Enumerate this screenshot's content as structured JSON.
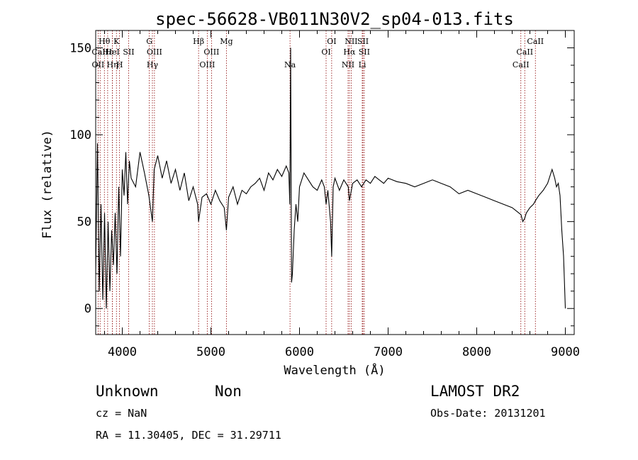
{
  "chart_data": {
    "type": "line",
    "title": "spec-56628-VB011N30V2_sp04-013.fits",
    "xlabel": "Wavelength (Å)",
    "ylabel": "Flux (relative)",
    "xlim": [
      3700,
      9100
    ],
    "ylim": [
      -15,
      160
    ],
    "x_ticks": [
      4000,
      5000,
      6000,
      7000,
      8000,
      9000
    ],
    "y_ticks": [
      0,
      50,
      100,
      150
    ],
    "grid": false,
    "series": [
      {
        "x": [
          3700,
          3720,
          3740,
          3760,
          3780,
          3800,
          3820,
          3840,
          3860,
          3880,
          3900,
          3920,
          3940,
          3960,
          3980,
          4000,
          4020,
          4040,
          4060,
          4080,
          4100,
          4150,
          4200,
          4250,
          4300,
          4340,
          4360,
          4400,
          4450,
          4500,
          4550,
          4600,
          4650,
          4700,
          4750,
          4800,
          4850,
          4861,
          4900,
          4950,
          5000,
          5050,
          5100,
          5150,
          5175,
          5200,
          5250,
          5300,
          5350,
          5400,
          5450,
          5500,
          5550,
          5600,
          5650,
          5700,
          5750,
          5800,
          5850,
          5880,
          5890,
          5895,
          5900,
          5910,
          5920,
          5940,
          5960,
          5980,
          6000,
          6050,
          6100,
          6150,
          6200,
          6250,
          6280,
          6300,
          6320,
          6350,
          6363,
          6380,
          6400,
          6450,
          6500,
          6550,
          6563,
          6600,
          6650,
          6700,
          6750,
          6800,
          6850,
          6900,
          6950,
          7000,
          7100,
          7200,
          7300,
          7400,
          7500,
          7600,
          7700,
          7800,
          7900,
          8000,
          8100,
          8200,
          8300,
          8400,
          8450,
          8500,
          8520,
          8542,
          8560,
          8600,
          8640,
          8662,
          8700,
          8750,
          8800,
          8850,
          8880,
          8900,
          8920,
          8940,
          8960,
          8980,
          9000
        ],
        "values": [
          20,
          95,
          10,
          60,
          5,
          55,
          0,
          50,
          10,
          45,
          25,
          55,
          20,
          70,
          30,
          80,
          65,
          90,
          60,
          85,
          75,
          70,
          90,
          78,
          65,
          50,
          80,
          88,
          75,
          85,
          72,
          80,
          68,
          78,
          62,
          70,
          60,
          50,
          64,
          66,
          60,
          68,
          62,
          58,
          45,
          64,
          70,
          60,
          68,
          66,
          70,
          72,
          75,
          68,
          78,
          74,
          80,
          76,
          82,
          78,
          60,
          100,
          150,
          15,
          20,
          45,
          60,
          50,
          70,
          78,
          74,
          70,
          68,
          74,
          70,
          60,
          68,
          50,
          30,
          70,
          75,
          68,
          74,
          70,
          62,
          72,
          74,
          70,
          74,
          72,
          76,
          74,
          72,
          75,
          73,
          72,
          70,
          72,
          74,
          72,
          70,
          66,
          68,
          66,
          64,
          62,
          60,
          58,
          56,
          54,
          50,
          52,
          55,
          58,
          60,
          62,
          65,
          68,
          72,
          80,
          75,
          70,
          72,
          65,
          45,
          30,
          0
        ]
      }
    ],
    "line_marks": [
      {
        "label": "Hθ",
        "x": 3798,
        "row": 1
      },
      {
        "label": "OII",
        "x": 3727,
        "row": 3
      },
      {
        "label": "CaII",
        "x": 3750,
        "row": 2
      },
      {
        "label": "Hε",
        "x": 3835,
        "row": 2
      },
      {
        "label": "Hη",
        "x": 3889,
        "row": 3
      },
      {
        "label": "K",
        "x": 3934,
        "row": 1
      },
      {
        "label": "H",
        "x": 3969,
        "row": 3
      },
      {
        "label": "HeI",
        "x": 3889,
        "row": 2
      },
      {
        "label": "SII",
        "x": 4072,
        "row": 2
      },
      {
        "label": "G",
        "x": 4305,
        "row": 1
      },
      {
        "label": "OIII",
        "x": 4363,
        "row": 2
      },
      {
        "label": "Hγ",
        "x": 4340,
        "row": 3
      },
      {
        "label": "Hβ",
        "x": 4861,
        "row": 1
      },
      {
        "label": "OIII",
        "x": 4959,
        "row": 3
      },
      {
        "label": "OIII",
        "x": 5007,
        "row": 2
      },
      {
        "label": "Mg",
        "x": 5175,
        "row": 1
      },
      {
        "label": "Na",
        "x": 5893,
        "row": 3
      },
      {
        "label": "OI",
        "x": 6300,
        "row": 2
      },
      {
        "label": "OI",
        "x": 6363,
        "row": 1
      },
      {
        "label": "NII",
        "x": 6548,
        "row": 3
      },
      {
        "label": "Hα",
        "x": 6563,
        "row": 2
      },
      {
        "label": "NII",
        "x": 6583,
        "row": 1
      },
      {
        "label": "SII",
        "x": 6716,
        "row": 1
      },
      {
        "label": "SII",
        "x": 6731,
        "row": 2
      },
      {
        "label": "Li",
        "x": 6708,
        "row": 3
      },
      {
        "label": "CaII",
        "x": 8498,
        "row": 3
      },
      {
        "label": "CaII",
        "x": 8542,
        "row": 2
      },
      {
        "label": "CaII",
        "x": 8662,
        "row": 1
      }
    ]
  },
  "footer": {
    "class_label": "Unknown",
    "subclass_label": "Non",
    "cz_label": "cz = NaN",
    "coords_label": "RA =  11.30405, DEC =  31.29711",
    "survey_label": "LAMOST DR2",
    "obs_date_label": "Obs-Date: 20131201"
  },
  "colors": {
    "spectrum": "#000000",
    "line_marker": "#8b0000",
    "background": "#ffffff"
  }
}
